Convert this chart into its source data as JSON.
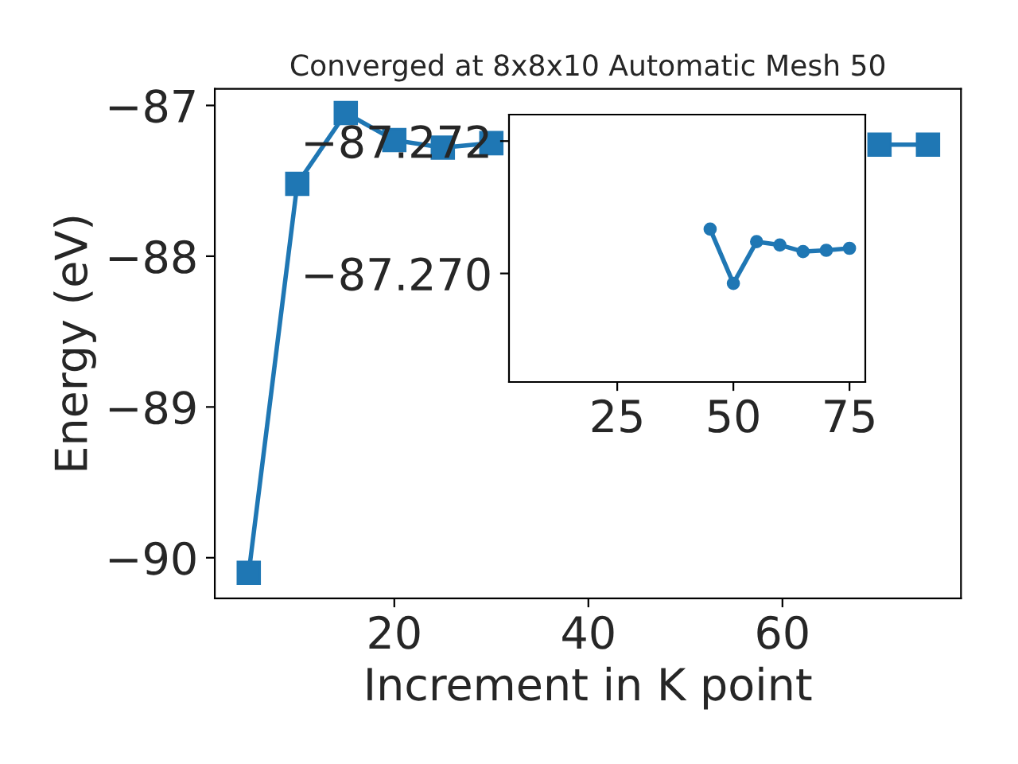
{
  "chart_data": [
    {
      "type": "line",
      "title": "Converged at 8x8x10 Automatic Mesh 50",
      "xlabel": "Increment in K point",
      "ylabel": "Energy (eV)",
      "x": [
        5,
        10,
        15,
        20,
        25,
        30,
        35,
        40,
        45,
        50,
        55,
        60,
        65,
        70,
        75
      ],
      "series": [
        {
          "color": "#1f77b4",
          "values": [
            -90.1,
            -87.52,
            -87.05,
            -87.23,
            -87.28,
            -87.25,
            null,
            null,
            null,
            null,
            null,
            null,
            null,
            -87.26,
            -87.26
          ]
        }
      ],
      "xlim": [
        1.5,
        78.4
      ],
      "ylim": [
        -90.27,
        -86.89
      ],
      "xticks": [
        20,
        40,
        60
      ],
      "yticks": [
        {
          "value": -87,
          "label": "−87"
        },
        {
          "value": -88,
          "label": "−88"
        },
        {
          "value": -89,
          "label": "−89"
        },
        {
          "value": -90,
          "label": "−90"
        }
      ],
      "marker": "square",
      "line_style": "solid",
      "grid": false,
      "legend": false
    },
    {
      "type": "line",
      "x": [
        45,
        50,
        55,
        60,
        65,
        70,
        75
      ],
      "series": [
        {
          "color": "#1f77b4",
          "values": [
            -87.27067,
            -87.26985,
            -87.27048,
            -87.27043,
            -87.27033,
            -87.27035,
            -87.27038
          ]
        }
      ],
      "xlim": [
        1.7,
        78.4
      ],
      "ylim": [
        -87.26836,
        -87.2724
      ],
      "xticks": [
        25,
        50,
        75
      ],
      "yticks": [
        {
          "value": -87.272,
          "label": "−87.272"
        },
        {
          "value": -87.27,
          "label": "−87.270"
        }
      ],
      "marker": "circle",
      "line_style": "solid",
      "grid": false,
      "legend": false
    }
  ]
}
